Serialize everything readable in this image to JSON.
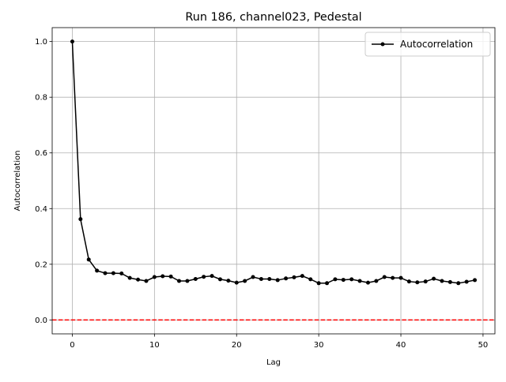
{
  "chart_data": {
    "type": "line",
    "title": "Run 186, channel023, Pedestal",
    "xlabel": "Lag",
    "ylabel": "Autocorrelation",
    "x": [
      0,
      1,
      2,
      3,
      4,
      5,
      6,
      7,
      8,
      9,
      10,
      11,
      12,
      13,
      14,
      15,
      16,
      17,
      18,
      19,
      20,
      21,
      22,
      23,
      24,
      25,
      26,
      27,
      28,
      29,
      30,
      31,
      32,
      33,
      34,
      35,
      36,
      37,
      38,
      39,
      40,
      41,
      42,
      43,
      44,
      45,
      46,
      47,
      48,
      49
    ],
    "series": [
      {
        "name": "Autocorrelation",
        "color": "#000000",
        "values": [
          1.0,
          0.362,
          0.217,
          0.177,
          0.168,
          0.168,
          0.167,
          0.151,
          0.145,
          0.14,
          0.154,
          0.157,
          0.156,
          0.14,
          0.14,
          0.147,
          0.155,
          0.158,
          0.146,
          0.141,
          0.134,
          0.14,
          0.154,
          0.147,
          0.147,
          0.143,
          0.149,
          0.153,
          0.158,
          0.146,
          0.132,
          0.132,
          0.146,
          0.144,
          0.146,
          0.14,
          0.134,
          0.14,
          0.154,
          0.151,
          0.151,
          0.138,
          0.135,
          0.138,
          0.148,
          0.14,
          0.136,
          0.132,
          0.137,
          0.143
        ]
      }
    ],
    "hline": {
      "value": 0,
      "color": "#ff0000"
    },
    "xlim": [
      -2.45,
      51.45
    ],
    "xticks": [
      0,
      10,
      20,
      30,
      40,
      50
    ],
    "ylim": [
      -0.05,
      1.05
    ],
    "yticks": [
      {
        "value": 0,
        "label": "0.0"
      },
      {
        "value": 0.2,
        "label": "0.2"
      },
      {
        "value": 0.4,
        "label": "0.4"
      },
      {
        "value": 0.6,
        "label": "0.6"
      },
      {
        "value": 0.8,
        "label": "0.8"
      },
      {
        "value": 1,
        "label": "1.0"
      }
    ],
    "grid": true,
    "legend": "upper-right"
  }
}
